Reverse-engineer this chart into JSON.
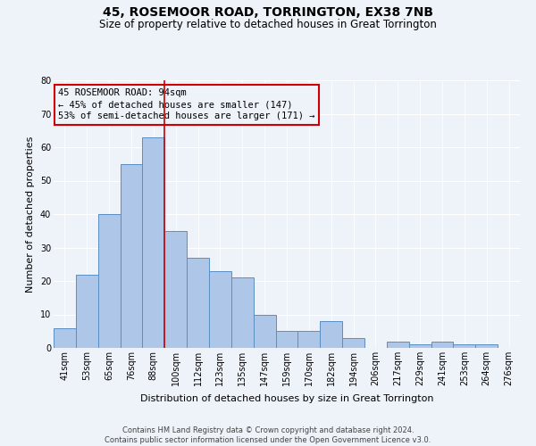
{
  "title": "45, ROSEMOOR ROAD, TORRINGTON, EX38 7NB",
  "subtitle": "Size of property relative to detached houses in Great Torrington",
  "xlabel": "Distribution of detached houses by size in Great Torrington",
  "ylabel": "Number of detached properties",
  "categories": [
    "41sqm",
    "53sqm",
    "65sqm",
    "76sqm",
    "88sqm",
    "100sqm",
    "112sqm",
    "123sqm",
    "135sqm",
    "147sqm",
    "159sqm",
    "170sqm",
    "182sqm",
    "194sqm",
    "206sqm",
    "217sqm",
    "229sqm",
    "241sqm",
    "253sqm",
    "264sqm",
    "276sqm"
  ],
  "values": [
    6,
    22,
    40,
    55,
    63,
    35,
    27,
    23,
    21,
    10,
    5,
    5,
    8,
    3,
    0,
    2,
    1,
    2,
    1,
    1,
    0
  ],
  "bar_color": "#aec6e8",
  "bar_edge_color": "#5a8fc2",
  "ylim": [
    0,
    80
  ],
  "yticks": [
    0,
    10,
    20,
    30,
    40,
    50,
    60,
    70,
    80
  ],
  "annotation_box_text": "45 ROSEMOOR ROAD: 94sqm\n← 45% of detached houses are smaller (147)\n53% of semi-detached houses are larger (171) →",
  "annotation_box_color": "#cc0000",
  "property_line_x": 4.5,
  "footnote": "Contains HM Land Registry data © Crown copyright and database right 2024.\nContains public sector information licensed under the Open Government Licence v3.0.",
  "bg_color": "#eef2f9",
  "grid_color": "#ffffff",
  "title_fontsize": 10,
  "subtitle_fontsize": 8.5,
  "label_fontsize": 8,
  "tick_fontsize": 7,
  "footnote_fontsize": 6
}
